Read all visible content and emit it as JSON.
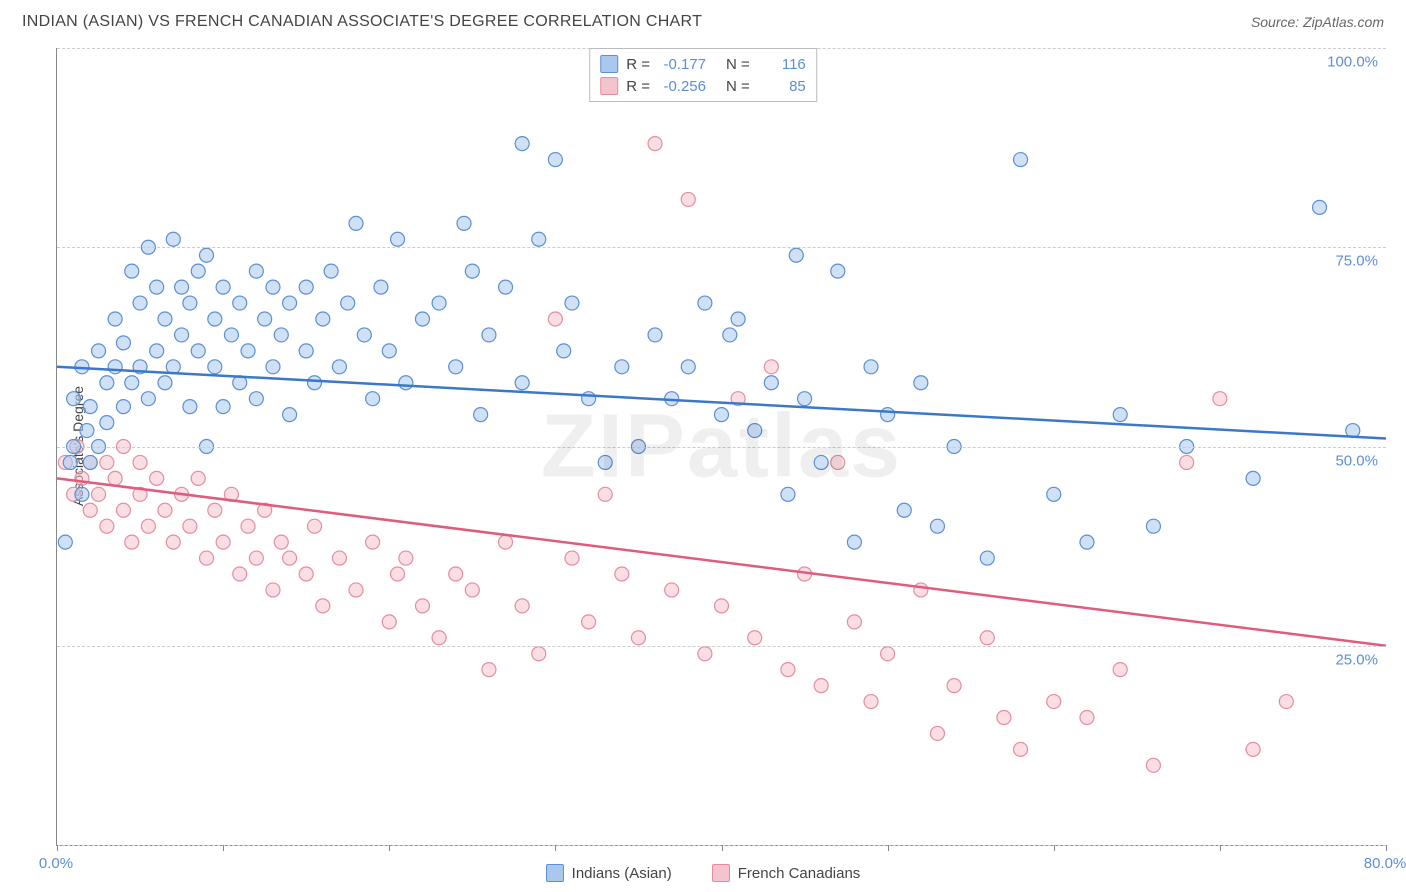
{
  "title": "INDIAN (ASIAN) VS FRENCH CANADIAN ASSOCIATE'S DEGREE CORRELATION CHART",
  "source_label": "Source:",
  "source_name": "ZipAtlas.com",
  "ylabel": "Associate's Degree",
  "watermark": "ZIPatlas",
  "chart": {
    "type": "scatter",
    "xlim": [
      0,
      80
    ],
    "ylim": [
      0,
      100
    ],
    "x_ticks": [
      0,
      10,
      20,
      30,
      40,
      50,
      60,
      70,
      80
    ],
    "x_tick_labels": {
      "0": "0.0%",
      "80": "80.0%"
    },
    "y_gridlines": [
      0,
      25,
      50,
      75,
      100
    ],
    "y_tick_labels": {
      "25": "25.0%",
      "50": "50.0%",
      "75": "75.0%",
      "100": "100.0%"
    },
    "grid_color": "#cccccc",
    "axis_color": "#888888",
    "background_color": "#ffffff",
    "tick_label_color": "#5b8fd6",
    "marker_radius": 7,
    "marker_opacity": 0.55,
    "line_width": 2.5
  },
  "series": [
    {
      "name": "Indians (Asian)",
      "fill_color": "#a9c8ec",
      "stroke_color": "#5b8fd6",
      "line_color": "#3b78c9",
      "r_value": "-0.177",
      "n_value": "116",
      "trend": {
        "x1": 0,
        "y1": 60,
        "x2": 80,
        "y2": 51
      },
      "points": [
        [
          0.5,
          38
        ],
        [
          0.8,
          48
        ],
        [
          1,
          50
        ],
        [
          1,
          56
        ],
        [
          1.5,
          44
        ],
        [
          1.5,
          60
        ],
        [
          1.8,
          52
        ],
        [
          2,
          55
        ],
        [
          2,
          48
        ],
        [
          2.5,
          62
        ],
        [
          2.5,
          50
        ],
        [
          3,
          58
        ],
        [
          3,
          53
        ],
        [
          3.5,
          66
        ],
        [
          3.5,
          60
        ],
        [
          4,
          55
        ],
        [
          4,
          63
        ],
        [
          4.5,
          72
        ],
        [
          4.5,
          58
        ],
        [
          5,
          60
        ],
        [
          5,
          68
        ],
        [
          5.5,
          56
        ],
        [
          5.5,
          75
        ],
        [
          6,
          62
        ],
        [
          6,
          70
        ],
        [
          6.5,
          58
        ],
        [
          6.5,
          66
        ],
        [
          7,
          76
        ],
        [
          7,
          60
        ],
        [
          7.5,
          64
        ],
        [
          7.5,
          70
        ],
        [
          8,
          55
        ],
        [
          8,
          68
        ],
        [
          8.5,
          72
        ],
        [
          8.5,
          62
        ],
        [
          9,
          50
        ],
        [
          9,
          74
        ],
        [
          9.5,
          66
        ],
        [
          9.5,
          60
        ],
        [
          10,
          70
        ],
        [
          10,
          55
        ],
        [
          10.5,
          64
        ],
        [
          11,
          68
        ],
        [
          11,
          58
        ],
        [
          11.5,
          62
        ],
        [
          12,
          72
        ],
        [
          12,
          56
        ],
        [
          12.5,
          66
        ],
        [
          13,
          60
        ],
        [
          13,
          70
        ],
        [
          13.5,
          64
        ],
        [
          14,
          68
        ],
        [
          14,
          54
        ],
        [
          15,
          62
        ],
        [
          15,
          70
        ],
        [
          15.5,
          58
        ],
        [
          16,
          66
        ],
        [
          16.5,
          72
        ],
        [
          17,
          60
        ],
        [
          17.5,
          68
        ],
        [
          18,
          78
        ],
        [
          18.5,
          64
        ],
        [
          19,
          56
        ],
        [
          19.5,
          70
        ],
        [
          20,
          62
        ],
        [
          20.5,
          76
        ],
        [
          21,
          58
        ],
        [
          22,
          66
        ],
        [
          23,
          68
        ],
        [
          24,
          60
        ],
        [
          24.5,
          78
        ],
        [
          25,
          72
        ],
        [
          25.5,
          54
        ],
        [
          26,
          64
        ],
        [
          27,
          70
        ],
        [
          28,
          58
        ],
        [
          28,
          88
        ],
        [
          29,
          76
        ],
        [
          30,
          86
        ],
        [
          30.5,
          62
        ],
        [
          31,
          68
        ],
        [
          32,
          56
        ],
        [
          33,
          48
        ],
        [
          34,
          60
        ],
        [
          35,
          50
        ],
        [
          36,
          64
        ],
        [
          37,
          56
        ],
        [
          38,
          60
        ],
        [
          39,
          68
        ],
        [
          40,
          54
        ],
        [
          40.5,
          64
        ],
        [
          41,
          66
        ],
        [
          42,
          52
        ],
        [
          43,
          58
        ],
        [
          44,
          44
        ],
        [
          44.5,
          74
        ],
        [
          45,
          56
        ],
        [
          46,
          48
        ],
        [
          47,
          72
        ],
        [
          48,
          38
        ],
        [
          49,
          60
        ],
        [
          50,
          54
        ],
        [
          51,
          42
        ],
        [
          52,
          58
        ],
        [
          53,
          40
        ],
        [
          54,
          50
        ],
        [
          56,
          36
        ],
        [
          58,
          86
        ],
        [
          60,
          44
        ],
        [
          62,
          38
        ],
        [
          64,
          54
        ],
        [
          66,
          40
        ],
        [
          68,
          50
        ],
        [
          72,
          46
        ],
        [
          76,
          80
        ],
        [
          78,
          52
        ]
      ]
    },
    {
      "name": "French Canadians",
      "fill_color": "#f4c4ce",
      "stroke_color": "#e68ca0",
      "line_color": "#e05c7e",
      "r_value": "-0.256",
      "n_value": "85",
      "trend": {
        "x1": 0,
        "y1": 46,
        "x2": 80,
        "y2": 25
      },
      "points": [
        [
          0.5,
          48
        ],
        [
          1,
          44
        ],
        [
          1.2,
          50
        ],
        [
          1.5,
          46
        ],
        [
          2,
          42
        ],
        [
          2,
          48
        ],
        [
          2.5,
          44
        ],
        [
          3,
          40
        ],
        [
          3,
          48
        ],
        [
          3.5,
          46
        ],
        [
          4,
          42
        ],
        [
          4,
          50
        ],
        [
          4.5,
          38
        ],
        [
          5,
          44
        ],
        [
          5,
          48
        ],
        [
          5.5,
          40
        ],
        [
          6,
          46
        ],
        [
          6.5,
          42
        ],
        [
          7,
          38
        ],
        [
          7.5,
          44
        ],
        [
          8,
          40
        ],
        [
          8.5,
          46
        ],
        [
          9,
          36
        ],
        [
          9.5,
          42
        ],
        [
          10,
          38
        ],
        [
          10.5,
          44
        ],
        [
          11,
          34
        ],
        [
          11.5,
          40
        ],
        [
          12,
          36
        ],
        [
          12.5,
          42
        ],
        [
          13,
          32
        ],
        [
          13.5,
          38
        ],
        [
          14,
          36
        ],
        [
          15,
          34
        ],
        [
          15.5,
          40
        ],
        [
          16,
          30
        ],
        [
          17,
          36
        ],
        [
          18,
          32
        ],
        [
          19,
          38
        ],
        [
          20,
          28
        ],
        [
          20.5,
          34
        ],
        [
          21,
          36
        ],
        [
          22,
          30
        ],
        [
          23,
          26
        ],
        [
          24,
          34
        ],
        [
          25,
          32
        ],
        [
          26,
          22
        ],
        [
          27,
          38
        ],
        [
          28,
          30
        ],
        [
          29,
          24
        ],
        [
          30,
          66
        ],
        [
          31,
          36
        ],
        [
          32,
          28
        ],
        [
          33,
          44
        ],
        [
          34,
          34
        ],
        [
          35,
          26
        ],
        [
          36,
          88
        ],
        [
          37,
          32
        ],
        [
          38,
          81
        ],
        [
          39,
          24
        ],
        [
          40,
          30
        ],
        [
          41,
          56
        ],
        [
          42,
          26
        ],
        [
          43,
          60
        ],
        [
          44,
          22
        ],
        [
          45,
          34
        ],
        [
          46,
          20
        ],
        [
          47,
          48
        ],
        [
          48,
          28
        ],
        [
          49,
          18
        ],
        [
          50,
          24
        ],
        [
          52,
          32
        ],
        [
          53,
          14
        ],
        [
          54,
          20
        ],
        [
          56,
          26
        ],
        [
          57,
          16
        ],
        [
          58,
          12
        ],
        [
          60,
          18
        ],
        [
          62,
          16
        ],
        [
          64,
          22
        ],
        [
          66,
          10
        ],
        [
          68,
          48
        ],
        [
          70,
          56
        ],
        [
          72,
          12
        ],
        [
          74,
          18
        ]
      ]
    }
  ],
  "legend_labels": {
    "s1": "Indians (Asian)",
    "s2": "French Canadians"
  },
  "stats_labels": {
    "r": "R  =",
    "n": "N  ="
  }
}
